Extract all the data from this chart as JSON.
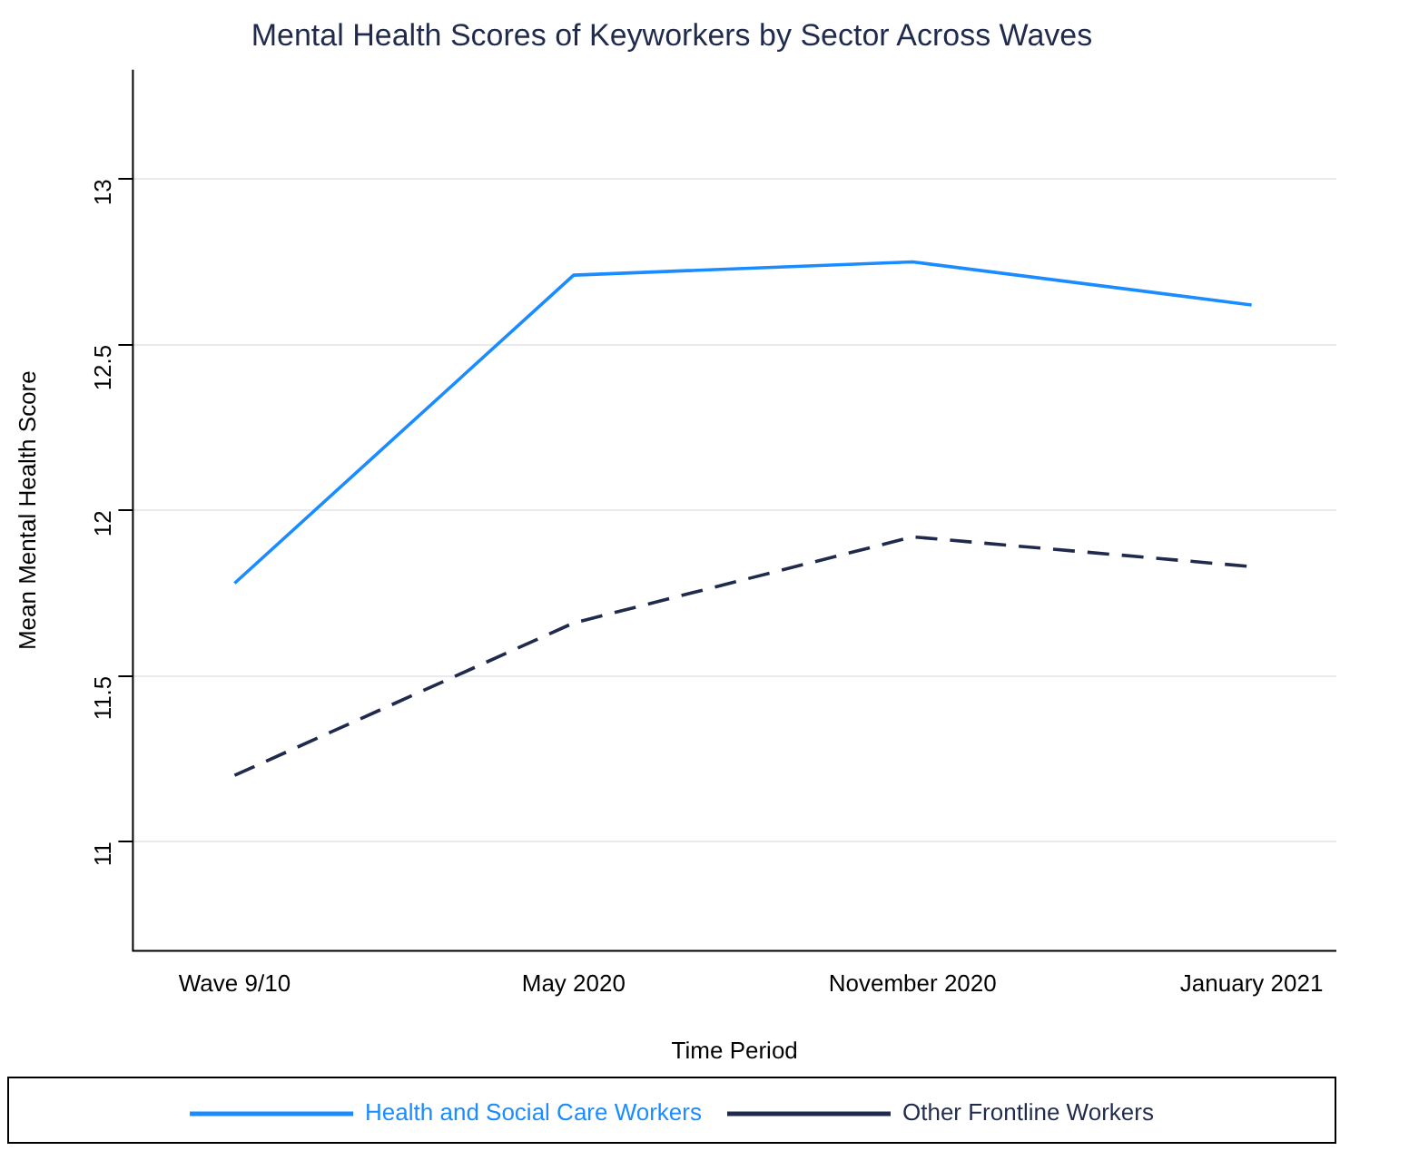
{
  "chart_data": {
    "type": "line",
    "title": "Mental Health Scores of Keyworkers by Sector Across Waves",
    "xlabel": "Time Period",
    "ylabel": "Mean Mental Health Score",
    "categories": [
      "Wave 9/10",
      "May 2020",
      "November 2020",
      "January 2021"
    ],
    "series": [
      {
        "name": "Health and Social Care Workers",
        "color": "#1a8cff",
        "line_style": "solid",
        "values": [
          11.78,
          12.71,
          12.75,
          12.62
        ]
      },
      {
        "name": "Other Frontline Workers",
        "color": "#1f2a4d",
        "line_style": "dashed",
        "values": [
          11.2,
          11.66,
          11.92,
          11.83
        ]
      }
    ],
    "ylim": [
      10.67,
      13.33
    ],
    "yticks": [
      11,
      11.5,
      12,
      12.5,
      13
    ],
    "grid": "y",
    "legend": "bottom",
    "marker": "none"
  }
}
